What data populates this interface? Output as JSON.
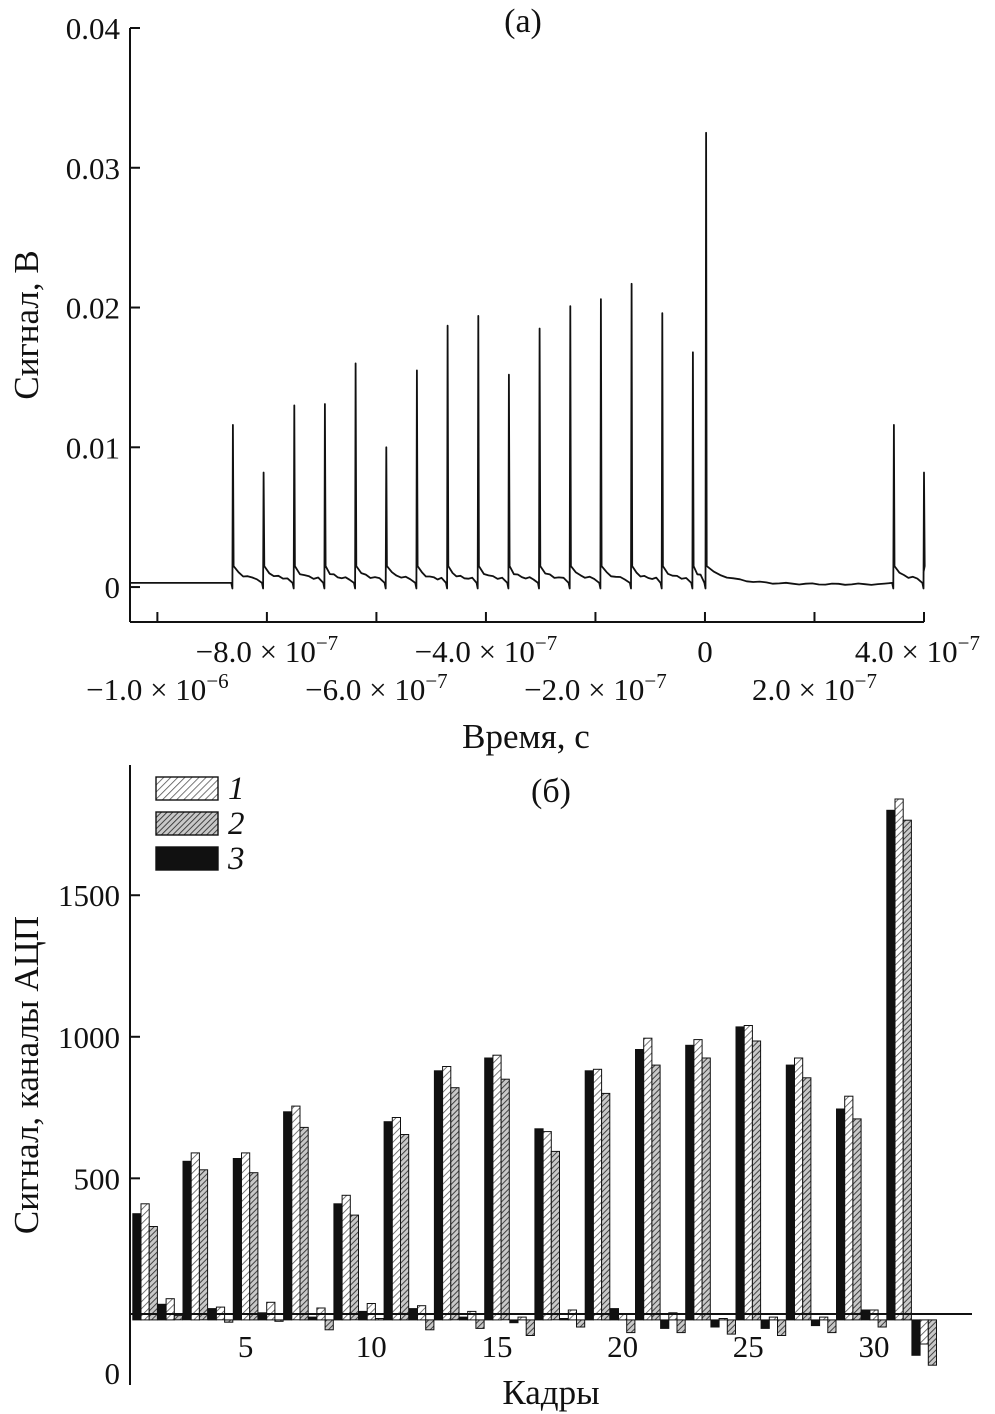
{
  "chart_data": [
    {
      "type": "line",
      "title": "(а)",
      "xlabel": "Время, с",
      "ylabel": "Сигнал, В",
      "xlim": [
        -1.05e-06,
        4e-07
      ],
      "ylim": [
        -0.0025,
        0.04
      ],
      "y_ticks": [
        {
          "v": 0,
          "label": "0"
        },
        {
          "v": 0.01,
          "label": "0.01"
        },
        {
          "v": 0.02,
          "label": "0.02"
        },
        {
          "v": 0.03,
          "label": "0.03"
        },
        {
          "v": 0.04,
          "label": "0.04"
        }
      ],
      "x_ticks": [
        {
          "v": -1e-06,
          "mant": "−1.0 × 10",
          "exp": "−6",
          "row": 1
        },
        {
          "v": -8e-07,
          "mant": "−8.0 × 10",
          "exp": "−7",
          "row": 0
        },
        {
          "v": -6e-07,
          "mant": "−6.0 × 10",
          "exp": "−7",
          "row": 1
        },
        {
          "v": -4e-07,
          "mant": "−4.0 × 10",
          "exp": "−7",
          "row": 0
        },
        {
          "v": -2e-07,
          "mant": "−2.0 × 10",
          "exp": "−7",
          "row": 1
        },
        {
          "v": 0,
          "mant": "0",
          "exp": "",
          "row": 0
        },
        {
          "v": 2e-07,
          "mant": "2.0 × 10",
          "exp": "−7",
          "row": 1
        },
        {
          "v": 4e-07,
          "mant": "4.0 × 10",
          "exp": "−7",
          "row": 0
        }
      ],
      "baseline": 0.0003,
      "peaks": [
        {
          "t": -8.62e-07,
          "v": 0.0116
        },
        {
          "t": -8.06e-07,
          "v": 0.0082
        },
        {
          "t": -7.5e-07,
          "v": 0.013
        },
        {
          "t": -6.94e-07,
          "v": 0.0131
        },
        {
          "t": -6.38e-07,
          "v": 0.016
        },
        {
          "t": -5.82e-07,
          "v": 0.01
        },
        {
          "t": -5.26e-07,
          "v": 0.0155
        },
        {
          "t": -4.7e-07,
          "v": 0.0187
        },
        {
          "t": -4.14e-07,
          "v": 0.0194
        },
        {
          "t": -3.58e-07,
          "v": 0.0152
        },
        {
          "t": -3.02e-07,
          "v": 0.0185
        },
        {
          "t": -2.46e-07,
          "v": 0.0201
        },
        {
          "t": -1.9e-07,
          "v": 0.0206
        },
        {
          "t": -1.34e-07,
          "v": 0.0217
        },
        {
          "t": -7.8e-08,
          "v": 0.0196
        },
        {
          "t": -2.2e-08,
          "v": 0.0168
        },
        {
          "t": 2e-09,
          "v": 0.0325
        },
        {
          "t": 3.45e-07,
          "v": 0.0116
        },
        {
          "t": 4e-07,
          "v": 0.0082
        }
      ]
    },
    {
      "type": "bar",
      "title": "(б)",
      "xlabel": "Кадры",
      "ylabel": "Сигнал, каналы АЦП",
      "xlim": [
        0.4,
        33.9
      ],
      "ylim": [
        -230,
        1960
      ],
      "x_ticks": [
        5,
        10,
        15,
        20,
        25,
        30
      ],
      "y_ticks": [
        {
          "v": 0,
          "label": "0"
        },
        {
          "v": 500,
          "label": "500"
        },
        {
          "v": 1000,
          "label": "1000"
        },
        {
          "v": 1500,
          "label": "1500"
        }
      ],
      "legend_position": "top-left",
      "series": [
        {
          "name": "1",
          "fill": "hatch-light"
        },
        {
          "name": "2",
          "fill": "hatch-dark"
        },
        {
          "name": "3",
          "fill": "solid"
        }
      ],
      "frames": [
        {
          "x": 1,
          "v": [
            [
              3,
              375
            ],
            [
              1,
              410
            ],
            [
              2,
              330
            ]
          ]
        },
        {
          "x": 2,
          "v": [
            [
              3,
              55
            ],
            [
              1,
              75
            ],
            [
              2,
              15
            ]
          ]
        },
        {
          "x": 3,
          "v": [
            [
              3,
              560
            ],
            [
              1,
              590
            ],
            [
              2,
              530
            ]
          ]
        },
        {
          "x": 4,
          "v": [
            [
              3,
              40
            ],
            [
              1,
              45
            ],
            [
              2,
              -8
            ]
          ]
        },
        {
          "x": 5,
          "v": [
            [
              3,
              570
            ],
            [
              1,
              590
            ],
            [
              2,
              520
            ]
          ]
        },
        {
          "x": 6,
          "v": [
            [
              3,
              25
            ],
            [
              1,
              62
            ],
            [
              2,
              -5
            ]
          ]
        },
        {
          "x": 7,
          "v": [
            [
              3,
              735
            ],
            [
              1,
              755
            ],
            [
              2,
              680
            ]
          ]
        },
        {
          "x": 8,
          "v": [
            [
              3,
              10
            ],
            [
              1,
              42
            ],
            [
              2,
              -35
            ]
          ]
        },
        {
          "x": 9,
          "v": [
            [
              3,
              410
            ],
            [
              1,
              440
            ],
            [
              2,
              370
            ]
          ]
        },
        {
          "x": 10,
          "v": [
            [
              3,
              30
            ],
            [
              1,
              58
            ],
            [
              2,
              5
            ]
          ]
        },
        {
          "x": 11,
          "v": [
            [
              3,
              700
            ],
            [
              1,
              715
            ],
            [
              2,
              655
            ]
          ]
        },
        {
          "x": 12,
          "v": [
            [
              3,
              40
            ],
            [
              1,
              50
            ],
            [
              2,
              -35
            ]
          ]
        },
        {
          "x": 13,
          "v": [
            [
              3,
              880
            ],
            [
              1,
              895
            ],
            [
              2,
              820
            ]
          ]
        },
        {
          "x": 14,
          "v": [
            [
              3,
              10
            ],
            [
              1,
              30
            ],
            [
              2,
              -30
            ]
          ]
        },
        {
          "x": 15,
          "v": [
            [
              3,
              925
            ],
            [
              1,
              935
            ],
            [
              2,
              850
            ]
          ]
        },
        {
          "x": 16,
          "v": [
            [
              3,
              -10
            ],
            [
              1,
              10
            ],
            [
              2,
              -55
            ]
          ]
        },
        {
          "x": 17,
          "v": [
            [
              3,
              675
            ],
            [
              1,
              665
            ],
            [
              2,
              595
            ]
          ]
        },
        {
          "x": 18,
          "v": [
            [
              3,
              5
            ],
            [
              1,
              35
            ],
            [
              2,
              -25
            ]
          ]
        },
        {
          "x": 19,
          "v": [
            [
              3,
              880
            ],
            [
              1,
              885
            ],
            [
              2,
              800
            ]
          ]
        },
        {
          "x": 20,
          "v": [
            [
              3,
              40
            ],
            [
              1,
              20
            ],
            [
              2,
              -45
            ]
          ]
        },
        {
          "x": 21,
          "v": [
            [
              3,
              955
            ],
            [
              1,
              995
            ],
            [
              2,
              900
            ]
          ]
        },
        {
          "x": 22,
          "v": [
            [
              3,
              -30
            ],
            [
              1,
              25
            ],
            [
              2,
              -45
            ]
          ]
        },
        {
          "x": 23,
          "v": [
            [
              3,
              970
            ],
            [
              1,
              990
            ],
            [
              2,
              925
            ]
          ]
        },
        {
          "x": 24,
          "v": [
            [
              3,
              -25
            ],
            [
              1,
              5
            ],
            [
              2,
              -50
            ]
          ]
        },
        {
          "x": 25,
          "v": [
            [
              3,
              1035
            ],
            [
              1,
              1040
            ],
            [
              2,
              985
            ]
          ]
        },
        {
          "x": 26,
          "v": [
            [
              3,
              -30
            ],
            [
              1,
              10
            ],
            [
              2,
              -55
            ]
          ]
        },
        {
          "x": 27,
          "v": [
            [
              3,
              900
            ],
            [
              1,
              925
            ],
            [
              2,
              855
            ]
          ]
        },
        {
          "x": 28,
          "v": [
            [
              3,
              -20
            ],
            [
              1,
              10
            ],
            [
              2,
              -45
            ]
          ]
        },
        {
          "x": 29,
          "v": [
            [
              3,
              745
            ],
            [
              1,
              790
            ],
            [
              2,
              710
            ]
          ]
        },
        {
          "x": 30,
          "v": [
            [
              3,
              35
            ],
            [
              1,
              35
            ],
            [
              2,
              -25
            ]
          ]
        },
        {
          "x": 31,
          "v": [
            [
              3,
              1800
            ],
            [
              1,
              1840
            ],
            [
              2,
              1765
            ]
          ]
        },
        {
          "x": 32,
          "v": [
            [
              3,
              -125
            ],
            [
              1,
              -85
            ],
            [
              2,
              -160
            ]
          ]
        }
      ]
    }
  ]
}
